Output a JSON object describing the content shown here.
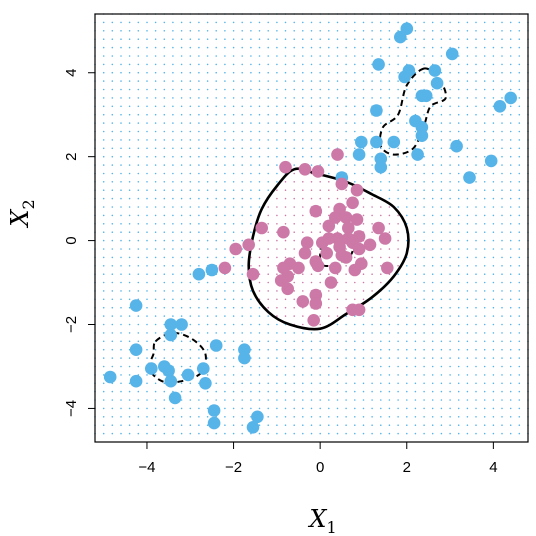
{
  "chart_data": {
    "type": "scatter",
    "xlabel": {
      "base": "X",
      "sub": "1"
    },
    "ylabel": {
      "base": "X",
      "sub": "2"
    },
    "xlim": [
      -5.2,
      4.8
    ],
    "ylim": [
      -4.8,
      5.4
    ],
    "xticks": [
      {
        "value": -4,
        "label": "−4"
      },
      {
        "value": -2,
        "label": "−2"
      },
      {
        "value": 0,
        "label": "0"
      },
      {
        "value": 2,
        "label": "2"
      },
      {
        "value": 4,
        "label": "4"
      }
    ],
    "yticks": [
      {
        "value": -4,
        "label": "−4"
      },
      {
        "value": -2,
        "label": "−2"
      },
      {
        "value": 0,
        "label": "0"
      },
      {
        "value": 2,
        "label": "2"
      },
      {
        "value": 4,
        "label": "4"
      }
    ],
    "grid_step": 0.2,
    "colors": {
      "blue": "#56b4e9",
      "pink": "#cc79a7",
      "boundary": "#000000"
    },
    "series": [
      {
        "color": "#56b4e9",
        "points": [
          [
            2.0,
            5.05
          ],
          [
            1.85,
            4.85
          ],
          [
            3.05,
            4.45
          ],
          [
            1.35,
            4.2
          ],
          [
            2.05,
            4.05
          ],
          [
            2.65,
            4.05
          ],
          [
            1.95,
            3.9
          ],
          [
            2.7,
            3.75
          ],
          [
            2.45,
            3.45
          ],
          [
            4.4,
            3.4
          ],
          [
            2.35,
            3.45
          ],
          [
            4.15,
            3.2
          ],
          [
            1.3,
            3.1
          ],
          [
            2.2,
            2.85
          ],
          [
            2.35,
            2.7
          ],
          [
            2.35,
            2.5
          ],
          [
            1.3,
            2.35
          ],
          [
            0.95,
            2.35
          ],
          [
            1.7,
            2.35
          ],
          [
            3.15,
            2.25
          ],
          [
            0.9,
            2.05
          ],
          [
            1.4,
            1.95
          ],
          [
            2.25,
            2.05
          ],
          [
            3.95,
            1.9
          ],
          [
            1.4,
            1.75
          ],
          [
            3.45,
            1.5
          ],
          [
            0.5,
            1.5
          ],
          [
            -2.5,
            -0.7
          ],
          [
            -2.8,
            -0.8
          ],
          [
            -4.25,
            -1.55
          ],
          [
            -3.45,
            -2.0
          ],
          [
            -3.2,
            -2.0
          ],
          [
            -3.45,
            -2.25
          ],
          [
            -2.4,
            -2.5
          ],
          [
            -4.25,
            -2.6
          ],
          [
            -1.75,
            -2.6
          ],
          [
            -1.75,
            -2.8
          ],
          [
            -3.9,
            -3.05
          ],
          [
            -3.6,
            -3.0
          ],
          [
            -3.5,
            -3.1
          ],
          [
            -3.05,
            -3.2
          ],
          [
            -2.7,
            -3.05
          ],
          [
            -4.85,
            -3.25
          ],
          [
            -4.25,
            -3.35
          ],
          [
            -3.45,
            -3.35
          ],
          [
            -2.65,
            -3.4
          ],
          [
            -3.35,
            -3.75
          ],
          [
            -2.45,
            -4.05
          ],
          [
            -1.45,
            -4.2
          ],
          [
            -2.45,
            -4.35
          ],
          [
            -1.55,
            -4.45
          ]
        ]
      },
      {
        "color": "#cc79a7",
        "points": [
          [
            -0.8,
            1.75
          ],
          [
            -0.35,
            1.7
          ],
          [
            0.4,
            2.05
          ],
          [
            -0.05,
            1.65
          ],
          [
            0.5,
            1.35
          ],
          [
            0.85,
            1.2
          ],
          [
            0.75,
            0.9
          ],
          [
            0.45,
            0.75
          ],
          [
            -0.1,
            0.7
          ],
          [
            0.35,
            0.55
          ],
          [
            0.6,
            0.55
          ],
          [
            0.85,
            0.5
          ],
          [
            0.2,
            0.35
          ],
          [
            0.65,
            0.3
          ],
          [
            1.35,
            0.3
          ],
          [
            -1.35,
            0.3
          ],
          [
            -0.85,
            0.2
          ],
          [
            0.9,
            0.1
          ],
          [
            0.4,
            0.05
          ],
          [
            1.5,
            0.05
          ],
          [
            0.2,
            0.05
          ],
          [
            -0.3,
            -0.05
          ],
          [
            0.65,
            0.05
          ],
          [
            0.75,
            -0.05
          ],
          [
            -1.95,
            -0.2
          ],
          [
            -1.65,
            -0.1
          ],
          [
            0.05,
            -0.05
          ],
          [
            1.15,
            -0.1
          ],
          [
            0.45,
            -0.15
          ],
          [
            0.9,
            -0.2
          ],
          [
            0.5,
            -0.35
          ],
          [
            -0.35,
            -0.3
          ],
          [
            0.15,
            -0.3
          ],
          [
            0.6,
            -0.4
          ],
          [
            -0.1,
            -0.5
          ],
          [
            -0.7,
            -0.55
          ],
          [
            -0.05,
            -0.6
          ],
          [
            0.95,
            -0.55
          ],
          [
            0.35,
            -0.65
          ],
          [
            -0.5,
            -0.65
          ],
          [
            -0.85,
            -0.65
          ],
          [
            1.55,
            -0.65
          ],
          [
            -2.2,
            -0.65
          ],
          [
            -1.55,
            -0.8
          ],
          [
            0.8,
            -0.7
          ],
          [
            -0.75,
            -0.85
          ],
          [
            -0.9,
            -0.95
          ],
          [
            0.25,
            -1.0
          ],
          [
            -0.75,
            -1.15
          ],
          [
            -0.1,
            -1.3
          ],
          [
            -0.4,
            -1.45
          ],
          [
            -0.1,
            -1.5
          ],
          [
            0.75,
            -1.65
          ],
          [
            0.9,
            -1.65
          ],
          [
            -0.15,
            -1.9
          ]
        ]
      }
    ],
    "boundaries": [
      {
        "style": "solid",
        "points": [
          [
            -0.6,
            1.7
          ],
          [
            -0.1,
            1.6
          ],
          [
            0.6,
            1.4
          ],
          [
            1.2,
            1.1
          ],
          [
            1.7,
            0.8
          ],
          [
            2.0,
            0.3
          ],
          [
            2.0,
            -0.3
          ],
          [
            1.7,
            -0.85
          ],
          [
            1.2,
            -1.35
          ],
          [
            0.6,
            -1.75
          ],
          [
            0.0,
            -2.1
          ],
          [
            -0.7,
            -2.0
          ],
          [
            -1.2,
            -1.7
          ],
          [
            -1.55,
            -1.2
          ],
          [
            -1.65,
            -0.6
          ],
          [
            -1.55,
            0.1
          ],
          [
            -1.35,
            0.75
          ],
          [
            -1.0,
            1.3
          ],
          [
            -0.6,
            1.7
          ]
        ]
      },
      {
        "style": "dashed",
        "points": [
          [
            0.0,
            -0.45
          ],
          [
            0.05,
            -0.05
          ],
          [
            0.25,
            0.1
          ],
          [
            0.55,
            0.1
          ],
          [
            0.75,
            -0.1
          ],
          [
            0.7,
            -0.35
          ],
          [
            0.4,
            -0.55
          ],
          [
            0.1,
            -0.6
          ],
          [
            0.0,
            -0.45
          ]
        ]
      },
      {
        "style": "dashed",
        "points": [
          [
            2.4,
            4.1
          ],
          [
            2.0,
            3.7
          ],
          [
            1.8,
            3.0
          ],
          [
            1.45,
            2.7
          ],
          [
            1.4,
            2.25
          ],
          [
            1.7,
            2.05
          ],
          [
            2.15,
            2.2
          ],
          [
            2.4,
            2.75
          ],
          [
            2.55,
            3.2
          ],
          [
            2.9,
            3.4
          ],
          [
            2.75,
            3.85
          ],
          [
            2.4,
            4.1
          ]
        ]
      },
      {
        "style": "dashed",
        "points": [
          [
            -3.8,
            -2.4
          ],
          [
            -3.4,
            -2.2
          ],
          [
            -2.95,
            -2.35
          ],
          [
            -2.65,
            -2.7
          ],
          [
            -2.75,
            -3.15
          ],
          [
            -3.2,
            -3.35
          ],
          [
            -3.65,
            -3.35
          ],
          [
            -3.95,
            -3.05
          ],
          [
            -3.85,
            -2.7
          ],
          [
            -3.8,
            -2.4
          ]
        ]
      }
    ]
  }
}
